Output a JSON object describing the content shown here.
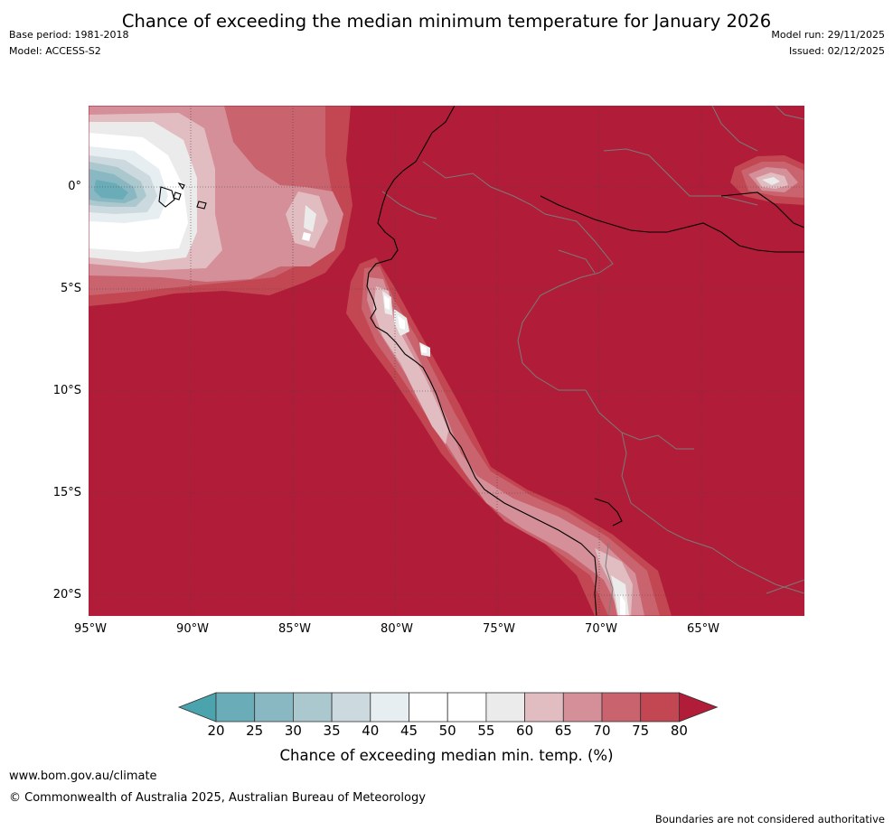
{
  "title": "Chance of exceeding the median minimum temperature for January 2026",
  "header": {
    "base_period": "Base period: 1981-2018",
    "model": "Model: ACCESS-S2",
    "model_run": "Model run: 29/11/2025",
    "issued": "Issued: 02/12/2025"
  },
  "map": {
    "lat_labels": [
      "0°",
      "5°S",
      "10°S",
      "15°S",
      "20°S"
    ],
    "lon_labels": [
      "95°W",
      "90°W",
      "85°W",
      "80°W",
      "75°W",
      "70°W",
      "65°W"
    ],
    "colors": {
      "dominant": "#b11d38",
      "c75_80": "#c24753",
      "c70_75": "#c9646e",
      "c65_70": "#d48f98",
      "c60_65": "#e1bcc0",
      "c55_60": "#ebebeb",
      "c45_55": "#ffffff",
      "c40_45": "#e7eef1",
      "c35_40": "#ccd9de",
      "c30_35": "#abc8ce",
      "c25_30": "#8ab8c2",
      "c20_25": "#6aadb8"
    }
  },
  "colorbar": {
    "ticks": [
      "20",
      "25",
      "30",
      "35",
      "40",
      "45",
      "50",
      "55",
      "60",
      "65",
      "70",
      "75",
      "80"
    ],
    "label": "Chance of exceeding median min. temp. (%)",
    "colors": [
      "#4aa3ad",
      "#6aadb8",
      "#8ab8c2",
      "#abc8ce",
      "#ccd9de",
      "#e7eef1",
      "#ffffff",
      "#ffffff",
      "#ebebeb",
      "#e1bcc0",
      "#d48f98",
      "#c9646e",
      "#c24753",
      "#b11d38"
    ]
  },
  "footer": {
    "url": "www.bom.gov.au/climate",
    "copyright": "© Commonwealth of Australia 2025, Australian Bureau of Meteorology",
    "note": "Boundaries are not considered authoritative"
  }
}
